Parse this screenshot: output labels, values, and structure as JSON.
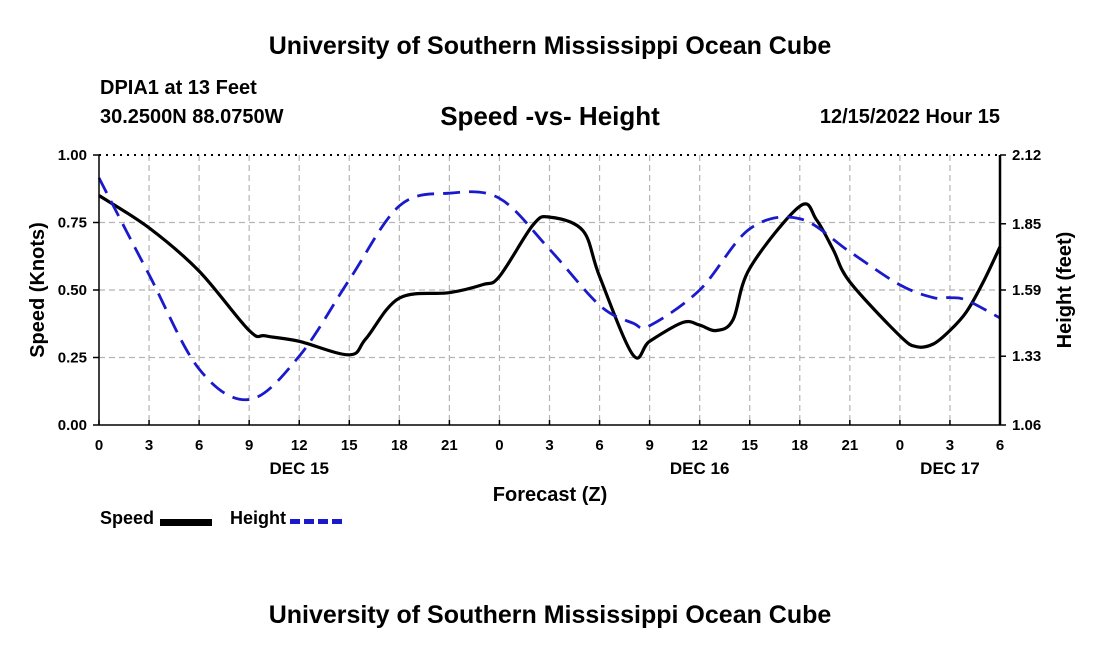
{
  "page": {
    "title": "University of Southern Mississippi Ocean Cube",
    "footer_title": "University of Southern Mississippi Ocean Cube",
    "station": "DPIA1 at 13 Feet",
    "coordinates": "30.2500N  88.0750W",
    "datetime": "12/15/2022 Hour 15"
  },
  "legend": {
    "speed_label": "Speed",
    "height_label": "Height"
  },
  "colors": {
    "speed": "#000000",
    "height": "#1a1acc",
    "grid": "#b4b4b4"
  },
  "chart_data": {
    "type": "line",
    "title": "Speed -vs- Height",
    "xlabel": "Forecast (Z)",
    "ylabel": "Speed (Knots)",
    "y2label": "Height (feet)",
    "x_unit": "hours from 00Z Dec 15",
    "xlim": [
      0,
      54
    ],
    "ylim": [
      0,
      1.0
    ],
    "y2lim": [
      1.06,
      2.12
    ],
    "x_ticks": [
      0,
      3,
      6,
      9,
      12,
      15,
      18,
      21,
      24,
      27,
      30,
      33,
      36,
      39,
      42,
      45,
      48,
      51,
      54
    ],
    "x_tick_labels": [
      "0",
      "3",
      "6",
      "9",
      "12",
      "15",
      "18",
      "21",
      "0",
      "3",
      "6",
      "9",
      "12",
      "15",
      "18",
      "21",
      "0",
      "3",
      "6"
    ],
    "date_labels": [
      {
        "x": 12,
        "label": "DEC 15"
      },
      {
        "x": 36,
        "label": "DEC 16"
      },
      {
        "x": 51,
        "label": "DEC 17"
      }
    ],
    "y_ticks": [
      0.0,
      0.25,
      0.5,
      0.75,
      1.0
    ],
    "y_tick_labels": [
      "0.00",
      "0.25",
      "0.50",
      "0.75",
      "1.00"
    ],
    "y2_ticks": [
      1.06,
      1.33,
      1.59,
      1.85,
      2.12
    ],
    "y2_tick_labels": [
      "1.06",
      "1.33",
      "1.59",
      "1.85",
      "2.12"
    ],
    "series": [
      {
        "name": "Speed",
        "axis": "left",
        "style": "solid",
        "x": [
          0,
          3,
          6,
          9,
          10,
          12,
          15,
          16,
          18,
          21,
          23,
          24,
          26,
          27,
          29,
          30,
          32,
          33,
          35,
          36,
          37,
          38,
          39,
          42,
          43,
          44,
          45,
          48,
          49,
          50,
          51,
          52,
          53,
          54
        ],
        "y": [
          0.85,
          0.73,
          0.57,
          0.35,
          0.33,
          0.31,
          0.26,
          0.32,
          0.47,
          0.49,
          0.52,
          0.55,
          0.74,
          0.77,
          0.72,
          0.55,
          0.26,
          0.31,
          0.38,
          0.37,
          0.35,
          0.39,
          0.58,
          0.81,
          0.76,
          0.65,
          0.53,
          0.33,
          0.29,
          0.3,
          0.35,
          0.42,
          0.53,
          0.66
        ]
      },
      {
        "name": "Height",
        "axis": "right",
        "style": "dashed",
        "x": [
          0,
          3,
          6,
          9,
          12,
          15,
          18,
          21,
          24,
          27,
          30,
          32,
          33,
          36,
          39,
          42,
          45,
          48,
          50,
          51,
          52,
          54
        ],
        "y": [
          2.03,
          1.65,
          1.28,
          1.16,
          1.33,
          1.63,
          1.92,
          1.97,
          1.95,
          1.75,
          1.53,
          1.46,
          1.45,
          1.59,
          1.83,
          1.87,
          1.74,
          1.61,
          1.56,
          1.56,
          1.55,
          1.48
        ]
      }
    ]
  }
}
